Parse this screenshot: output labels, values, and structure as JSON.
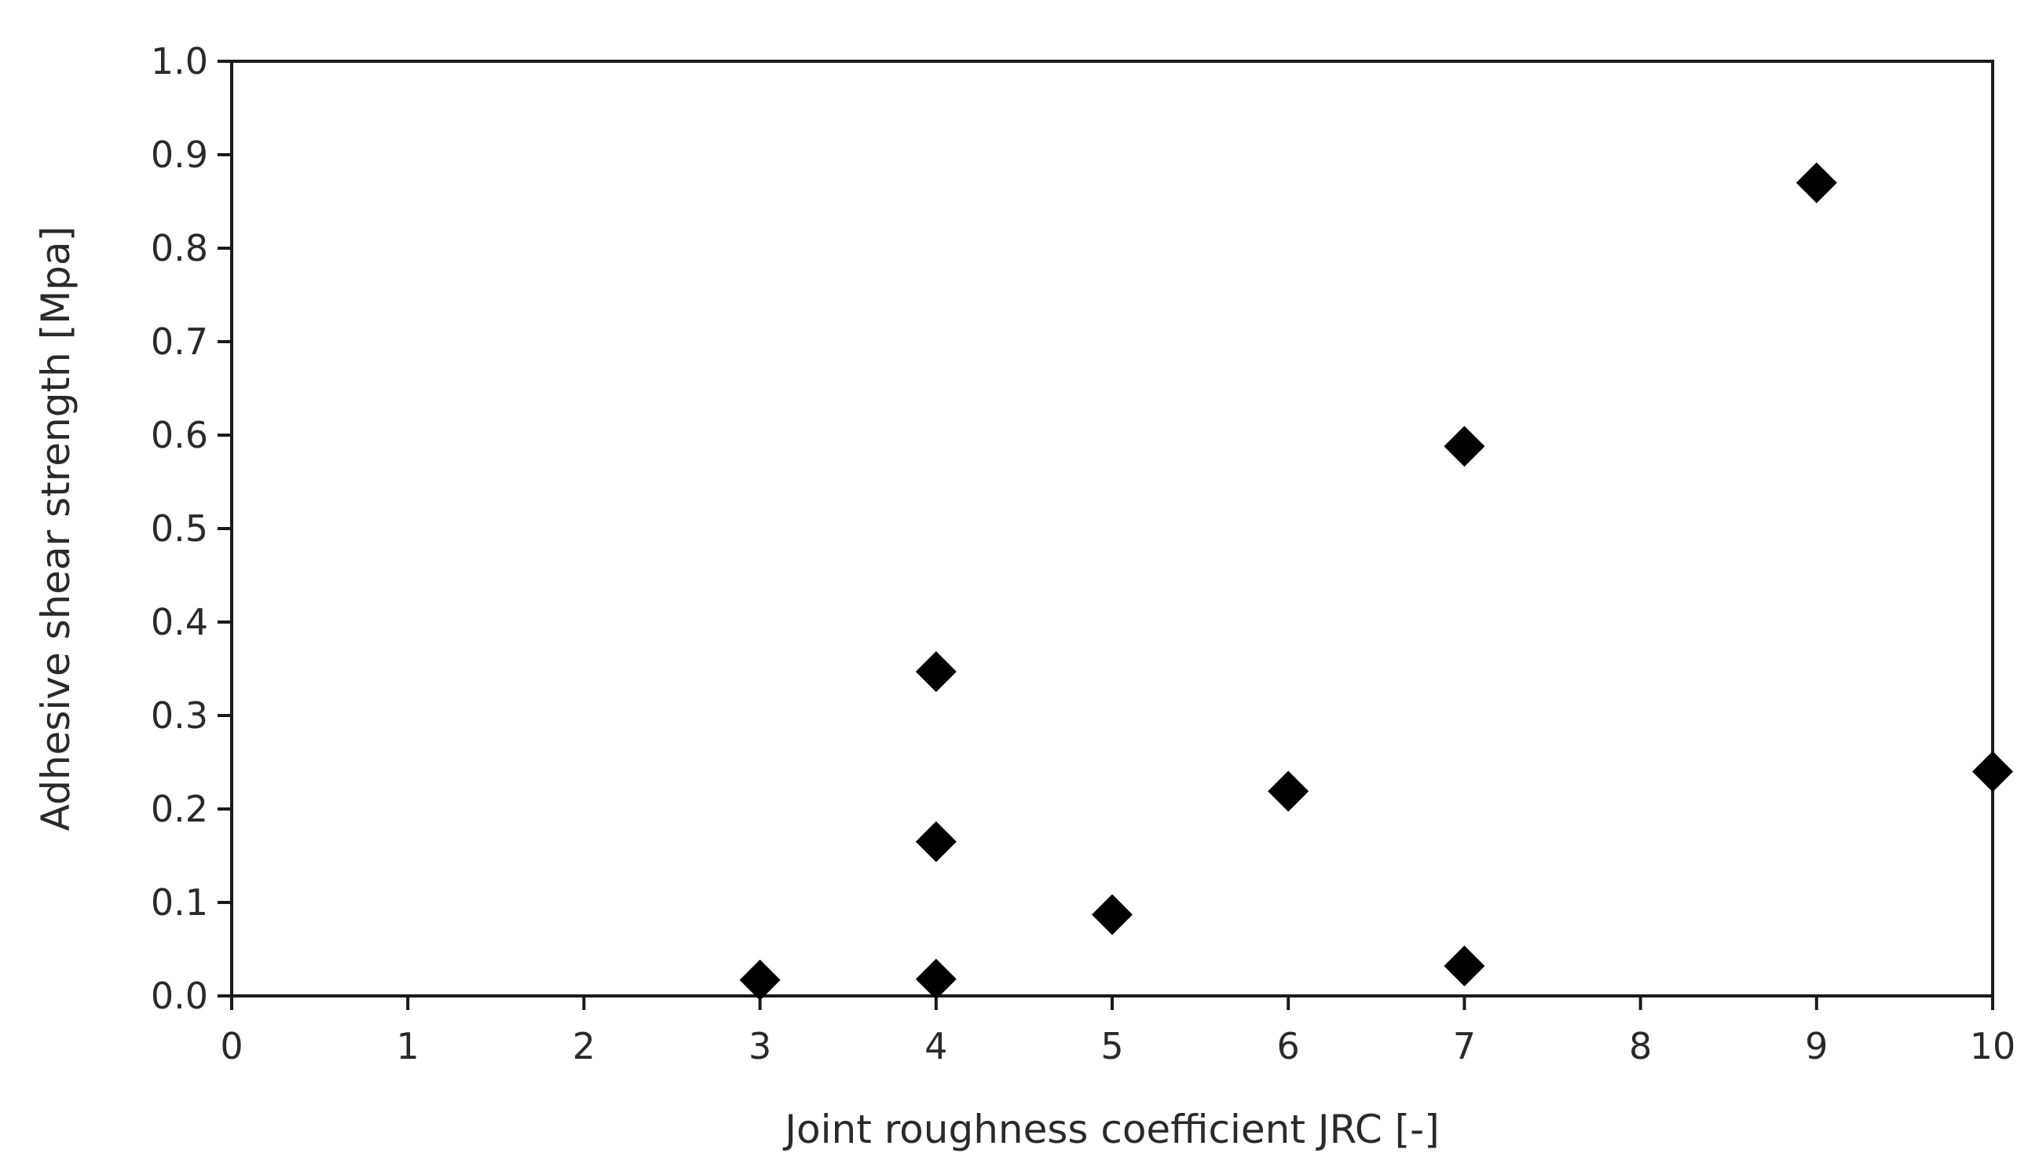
{
  "chart_data": {
    "type": "scatter",
    "title": "",
    "xlabel": "Joint roughness coefficient JRC [-]",
    "ylabel": "Adhesive shear strength [Mpa]",
    "xlim": [
      0,
      10
    ],
    "ylim": [
      0,
      1.0
    ],
    "x_ticks": [
      "0",
      "1",
      "2",
      "3",
      "4",
      "5",
      "6",
      "7",
      "8",
      "9",
      "10"
    ],
    "y_ticks": [
      "0.0",
      "0.1",
      "0.2",
      "0.3",
      "0.4",
      "0.5",
      "0.6",
      "0.7",
      "0.8",
      "0.9",
      "1.0"
    ],
    "grid": false,
    "legend": "none",
    "marker": "diamond",
    "marker_color": "#000000",
    "series": [
      {
        "points": [
          {
            "x": 3,
            "y": 0.017
          },
          {
            "x": 4,
            "y": 0.018
          },
          {
            "x": 4,
            "y": 0.165
          },
          {
            "x": 4,
            "y": 0.347
          },
          {
            "x": 5,
            "y": 0.087
          },
          {
            "x": 6,
            "y": 0.219
          },
          {
            "x": 7,
            "y": 0.032
          },
          {
            "x": 7,
            "y": 0.588
          },
          {
            "x": 9,
            "y": 0.87
          },
          {
            "x": 10,
            "y": 0.24
          }
        ]
      }
    ]
  }
}
